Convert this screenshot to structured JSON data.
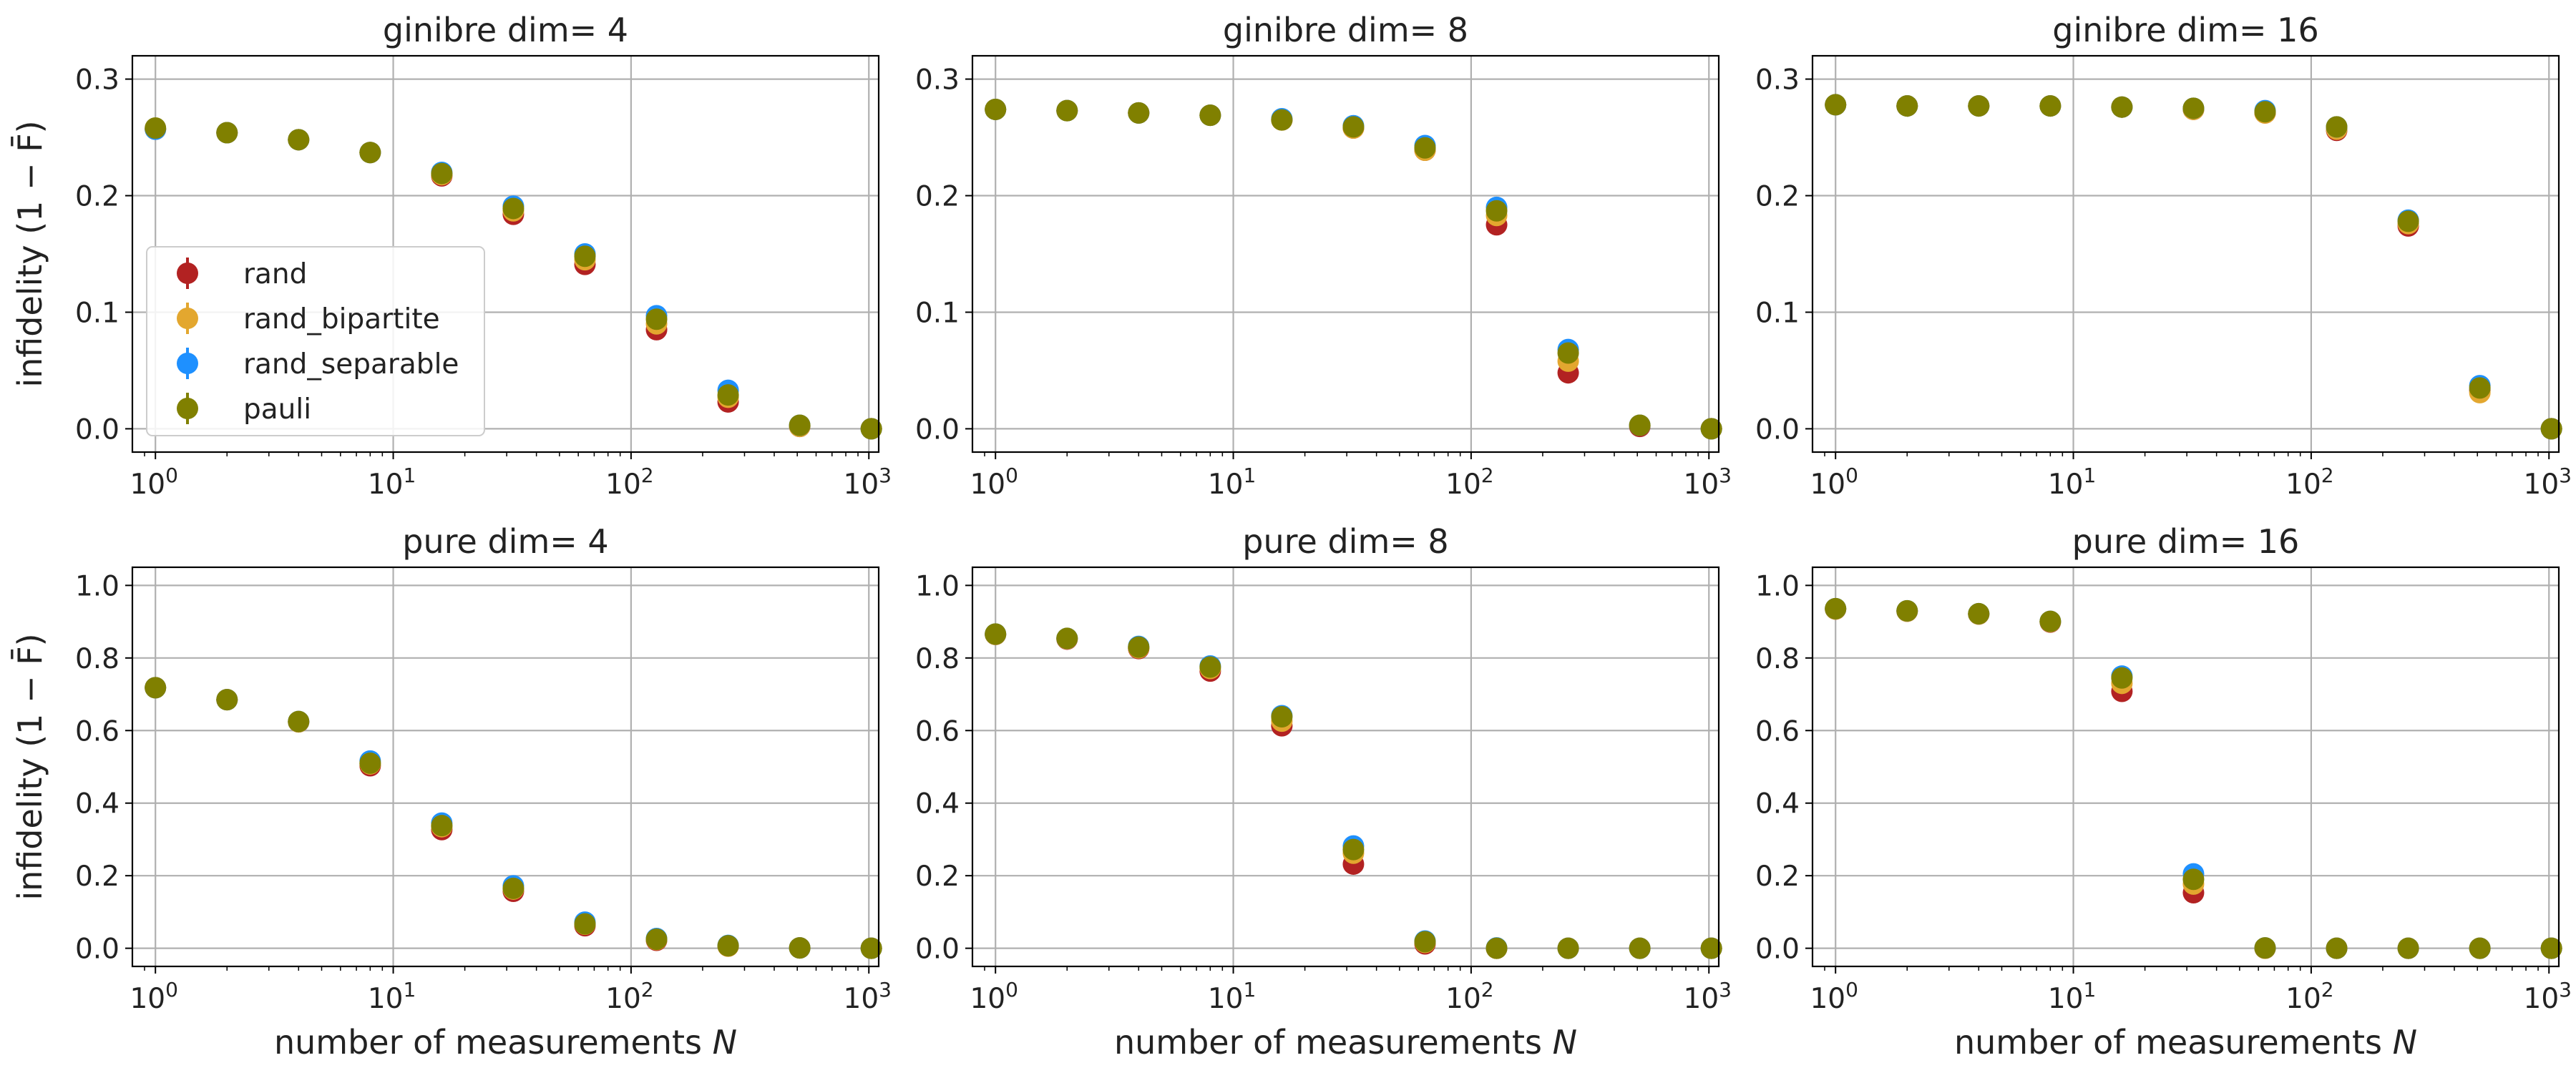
{
  "figure": {
    "ylabel": "infidelity (1 − F̄)",
    "xlabel_prefix": "number of measurements ",
    "xlabel_var": "N"
  },
  "legend": {
    "placement": "upper-left of first panel",
    "entries": [
      "rand",
      "rand_bipartite",
      "rand_separable",
      "pauli"
    ]
  },
  "colors": {
    "rand": "#b22222",
    "rand_bipartite": "#e3a72f",
    "rand_separable": "#1e90ff",
    "pauli": "#808000",
    "grid": "#b0b0b0",
    "axes": "#000000"
  },
  "chart_data": [
    {
      "type": "scatter",
      "title": "ginibre dim= 4",
      "x_scale": "log",
      "xlim": [
        0.8,
        1100
      ],
      "ylim": [
        -0.02,
        0.32
      ],
      "xticks": [
        "10^0",
        "10^1",
        "10^2",
        "10^3"
      ],
      "yticks": [
        "0.0",
        "0.1",
        "0.2",
        "0.3"
      ],
      "grid": true,
      "x": [
        1,
        2,
        4,
        8,
        16,
        32,
        64,
        128,
        256,
        512,
        1024
      ],
      "series": [
        {
          "name": "rand",
          "values": [
            0.257,
            0.254,
            0.248,
            0.237,
            0.217,
            0.184,
            0.141,
            0.085,
            0.023,
            0.002,
            0.0
          ]
        },
        {
          "name": "rand_bipartite",
          "values": [
            0.257,
            0.254,
            0.248,
            0.237,
            0.218,
            0.187,
            0.145,
            0.09,
            0.027,
            0.002,
            0.0
          ]
        },
        {
          "name": "rand_separable",
          "values": [
            0.257,
            0.254,
            0.248,
            0.237,
            0.22,
            0.191,
            0.15,
            0.097,
            0.033,
            0.003,
            0.0
          ]
        },
        {
          "name": "pauli",
          "values": [
            0.258,
            0.254,
            0.248,
            0.237,
            0.219,
            0.189,
            0.148,
            0.094,
            0.029,
            0.003,
            0.0
          ]
        }
      ]
    },
    {
      "type": "scatter",
      "title": "ginibre dim= 8",
      "x_scale": "log",
      "xlim": [
        0.8,
        1100
      ],
      "ylim": [
        -0.02,
        0.32
      ],
      "xticks": [
        "10^0",
        "10^1",
        "10^2",
        "10^3"
      ],
      "yticks": [
        "0.0",
        "0.1",
        "0.2",
        "0.3"
      ],
      "grid": true,
      "x": [
        1,
        2,
        4,
        8,
        16,
        32,
        64,
        128,
        256,
        512,
        1024
      ],
      "series": [
        {
          "name": "rand",
          "values": [
            0.274,
            0.273,
            0.271,
            0.269,
            0.265,
            0.258,
            0.239,
            0.175,
            0.048,
            0.002,
            0.0
          ]
        },
        {
          "name": "rand_bipartite",
          "values": [
            0.274,
            0.273,
            0.271,
            0.269,
            0.265,
            0.258,
            0.239,
            0.183,
            0.058,
            0.003,
            0.0
          ]
        },
        {
          "name": "rand_separable",
          "values": [
            0.274,
            0.273,
            0.271,
            0.269,
            0.266,
            0.26,
            0.243,
            0.19,
            0.068,
            0.003,
            0.0
          ]
        },
        {
          "name": "pauli",
          "values": [
            0.274,
            0.273,
            0.271,
            0.269,
            0.265,
            0.259,
            0.241,
            0.187,
            0.065,
            0.003,
            0.0
          ]
        }
      ]
    },
    {
      "type": "scatter",
      "title": "ginibre dim= 16",
      "x_scale": "log",
      "xlim": [
        0.8,
        1100
      ],
      "ylim": [
        -0.02,
        0.32
      ],
      "xticks": [
        "10^0",
        "10^1",
        "10^2",
        "10^3"
      ],
      "yticks": [
        "0.0",
        "0.1",
        "0.2",
        "0.3"
      ],
      "grid": true,
      "x": [
        1,
        2,
        4,
        8,
        16,
        32,
        64,
        128,
        256,
        512,
        1024
      ],
      "series": [
        {
          "name": "rand",
          "values": [
            0.278,
            0.277,
            0.277,
            0.277,
            0.276,
            0.274,
            0.271,
            0.256,
            0.174,
            0.033,
            0.0
          ]
        },
        {
          "name": "rand_bipartite",
          "values": [
            0.278,
            0.277,
            0.277,
            0.277,
            0.276,
            0.274,
            0.271,
            0.257,
            0.176,
            0.031,
            0.0
          ]
        },
        {
          "name": "rand_separable",
          "values": [
            0.278,
            0.277,
            0.277,
            0.277,
            0.276,
            0.275,
            0.273,
            0.259,
            0.179,
            0.037,
            0.0
          ]
        },
        {
          "name": "pauli",
          "values": [
            0.278,
            0.277,
            0.277,
            0.277,
            0.276,
            0.275,
            0.272,
            0.259,
            0.178,
            0.035,
            0.0
          ]
        }
      ]
    },
    {
      "type": "scatter",
      "title": "pure dim= 4",
      "x_scale": "log",
      "xlim": [
        0.8,
        1100
      ],
      "ylim": [
        -0.05,
        1.05
      ],
      "xticks": [
        "10^0",
        "10^1",
        "10^2",
        "10^3"
      ],
      "yticks": [
        "0.0",
        "0.2",
        "0.4",
        "0.6",
        "0.8",
        "1.0"
      ],
      "grid": true,
      "x": [
        1,
        2,
        4,
        8,
        16,
        32,
        64,
        128,
        256,
        512,
        1024
      ],
      "series": [
        {
          "name": "rand",
          "values": [
            0.718,
            0.685,
            0.624,
            0.503,
            0.327,
            0.157,
            0.062,
            0.022,
            0.006,
            0.001,
            0.0
          ]
        },
        {
          "name": "rand_bipartite",
          "values": [
            0.718,
            0.685,
            0.624,
            0.508,
            0.335,
            0.163,
            0.066,
            0.024,
            0.006,
            0.001,
            0.0
          ]
        },
        {
          "name": "rand_separable",
          "values": [
            0.718,
            0.685,
            0.625,
            0.516,
            0.345,
            0.172,
            0.072,
            0.027,
            0.008,
            0.001,
            0.0
          ]
        },
        {
          "name": "pauli",
          "values": [
            0.718,
            0.685,
            0.625,
            0.51,
            0.338,
            0.165,
            0.067,
            0.025,
            0.007,
            0.001,
            0.0
          ]
        }
      ]
    },
    {
      "type": "scatter",
      "title": "pure dim= 8",
      "x_scale": "log",
      "xlim": [
        0.8,
        1100
      ],
      "ylim": [
        -0.05,
        1.05
      ],
      "xticks": [
        "10^0",
        "10^1",
        "10^2",
        "10^3"
      ],
      "yticks": [
        "0.0",
        "0.2",
        "0.4",
        "0.6",
        "0.8",
        "1.0"
      ],
      "grid": true,
      "x": [
        1,
        2,
        4,
        8,
        16,
        32,
        64,
        128,
        256,
        512,
        1024
      ],
      "series": [
        {
          "name": "rand",
          "values": [
            0.865,
            0.852,
            0.826,
            0.764,
            0.613,
            0.232,
            0.012,
            0.0,
            0.0,
            0.0,
            0.0
          ]
        },
        {
          "name": "rand_bipartite",
          "values": [
            0.865,
            0.853,
            0.828,
            0.771,
            0.626,
            0.262,
            0.016,
            0.0,
            0.0,
            0.0,
            0.0
          ]
        },
        {
          "name": "rand_separable",
          "values": [
            0.866,
            0.854,
            0.832,
            0.778,
            0.641,
            0.282,
            0.02,
            0.001,
            0.0,
            0.0,
            0.0
          ]
        },
        {
          "name": "pauli",
          "values": [
            0.866,
            0.854,
            0.83,
            0.775,
            0.638,
            0.272,
            0.018,
            0.0,
            0.0,
            0.0,
            0.0
          ]
        }
      ]
    },
    {
      "type": "scatter",
      "title": "pure dim= 16",
      "x_scale": "log",
      "xlim": [
        0.8,
        1100
      ],
      "ylim": [
        -0.05,
        1.05
      ],
      "xticks": [
        "10^0",
        "10^1",
        "10^2",
        "10^3"
      ],
      "yticks": [
        "0.0",
        "0.2",
        "0.4",
        "0.6",
        "0.8",
        "1.0"
      ],
      "grid": true,
      "x": [
        1,
        2,
        4,
        8,
        16,
        32,
        64,
        128,
        256,
        512,
        1024
      ],
      "series": [
        {
          "name": "rand",
          "values": [
            0.935,
            0.929,
            0.921,
            0.899,
            0.708,
            0.153,
            0.0,
            0.0,
            0.0,
            0.0,
            0.0
          ]
        },
        {
          "name": "rand_bipartite",
          "values": [
            0.935,
            0.929,
            0.921,
            0.9,
            0.73,
            0.177,
            0.0,
            0.0,
            0.0,
            0.0,
            0.0
          ]
        },
        {
          "name": "rand_separable",
          "values": [
            0.936,
            0.93,
            0.922,
            0.901,
            0.75,
            0.205,
            0.001,
            0.0,
            0.0,
            0.0,
            0.0
          ]
        },
        {
          "name": "pauli",
          "values": [
            0.936,
            0.93,
            0.922,
            0.901,
            0.745,
            0.19,
            0.001,
            0.0,
            0.0,
            0.0,
            0.0
          ]
        }
      ]
    }
  ]
}
